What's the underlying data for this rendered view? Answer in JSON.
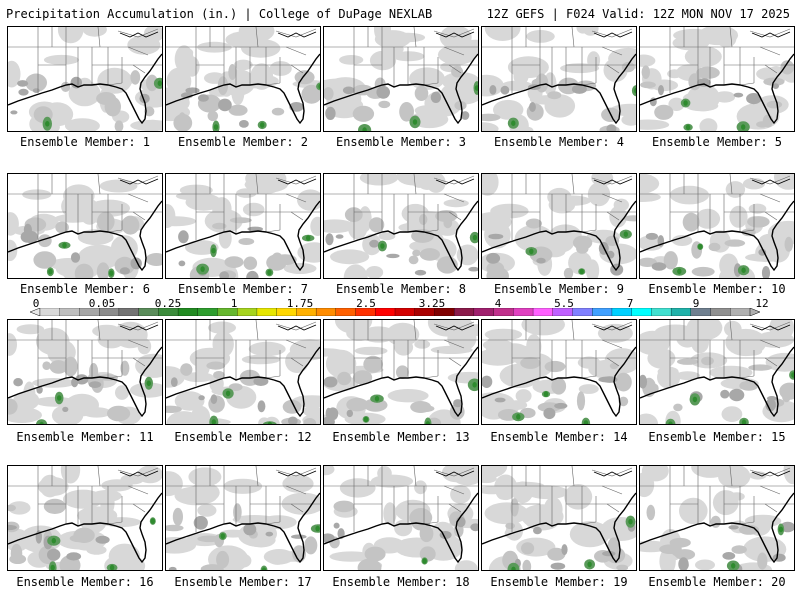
{
  "header": {
    "left": "Precipitation Accumulation (in.) | College of DuPage NEXLAB",
    "right": "12Z GEFS | F024 Valid: 12Z MON NOV 17 2025"
  },
  "members": [
    "Ensemble Member: 1",
    "Ensemble Member: 2",
    "Ensemble Member: 3",
    "Ensemble Member: 4",
    "Ensemble Member: 5",
    "Ensemble Member: 6",
    "Ensemble Member: 7",
    "Ensemble Member: 8",
    "Ensemble Member: 9",
    "Ensemble Member: 10",
    "Ensemble Member: 11",
    "Ensemble Member: 12",
    "Ensemble Member: 13",
    "Ensemble Member: 14",
    "Ensemble Member: 15",
    "Ensemble Member: 16",
    "Ensemble Member: 17",
    "Ensemble Member: 18",
    "Ensemble Member: 19",
    "Ensemble Member: 20"
  ],
  "colorbar": {
    "labels": [
      "0",
      "0.05",
      "0.25",
      "1",
      "1.75",
      "2.5",
      "3.25",
      "4",
      "5.5",
      "7",
      "9",
      "12"
    ],
    "colors": [
      "#d9d9d9",
      "#bfbfbf",
      "#a6a6a6",
      "#8c8c8c",
      "#737373",
      "#5a8c5a",
      "#3c8c3c",
      "#228b22",
      "#2e9e2e",
      "#66b82e",
      "#a6d41e",
      "#e6e600",
      "#ffd700",
      "#ffb000",
      "#ff8c00",
      "#ff6000",
      "#ff3000",
      "#ff0000",
      "#d40000",
      "#aa0000",
      "#800000",
      "#8b1a4a",
      "#a0206e",
      "#c0308c",
      "#e040c0",
      "#ff60ff",
      "#c060ff",
      "#8080ff",
      "#40a0ff",
      "#00d0ff",
      "#00ffff",
      "#40e0d0",
      "#20b2aa",
      "#708090",
      "#909090",
      "#b0b0b0"
    ]
  }
}
